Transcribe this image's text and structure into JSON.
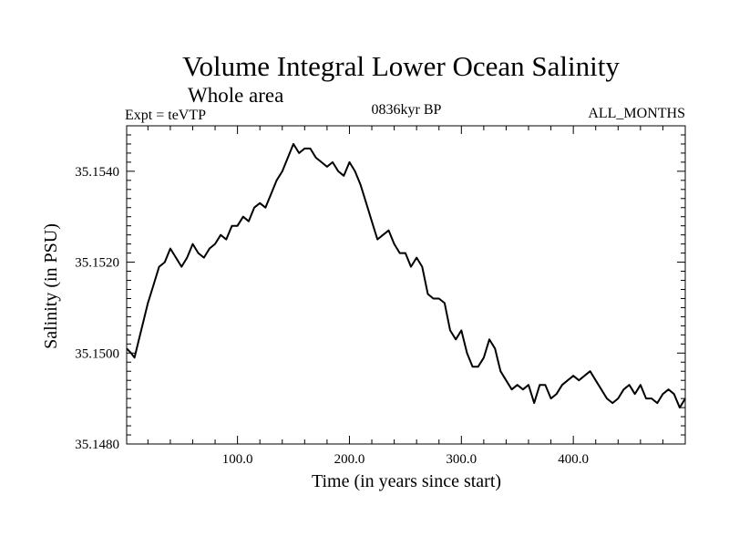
{
  "chart_data": {
    "type": "line",
    "title": "Volume Integral Lower Ocean Salinity",
    "subtitle": "Whole area",
    "expt_label": "Expt = teVTP",
    "period_label": "0836kyr BP",
    "months_label": "ALL_MONTHS",
    "xlabel": "Time (in years since start)",
    "ylabel": "Salinity (in PSU)",
    "xlim": [
      1,
      500
    ],
    "ylim": [
      35.148,
      35.155
    ],
    "xticks": [
      100,
      200,
      300,
      400
    ],
    "xtick_labels": [
      "100.0",
      "200.0",
      "300.0",
      "400.0"
    ],
    "yticks": [
      35.148,
      35.15,
      35.152,
      35.154
    ],
    "ytick_labels": [
      "35.1480",
      "35.1500",
      "35.1520",
      "35.1540"
    ],
    "series": [
      {
        "name": "salinity",
        "x": [
          1,
          5,
          8,
          12,
          16,
          20,
          25,
          30,
          35,
          40,
          45,
          50,
          55,
          60,
          65,
          70,
          75,
          80,
          85,
          90,
          95,
          100,
          105,
          110,
          115,
          120,
          125,
          130,
          135,
          140,
          145,
          150,
          155,
          160,
          165,
          170,
          175,
          180,
          185,
          190,
          195,
          200,
          205,
          210,
          215,
          220,
          225,
          230,
          235,
          240,
          245,
          250,
          255,
          260,
          265,
          270,
          275,
          280,
          285,
          290,
          295,
          300,
          305,
          310,
          315,
          320,
          325,
          330,
          335,
          340,
          345,
          350,
          355,
          360,
          365,
          370,
          375,
          380,
          385,
          390,
          395,
          400,
          405,
          410,
          415,
          420,
          425,
          430,
          435,
          440,
          445,
          450,
          455,
          460,
          465,
          470,
          475,
          480,
          485,
          490,
          495,
          500
        ],
        "values": [
          35.1501,
          35.15,
          35.1499,
          35.1503,
          35.1507,
          35.1511,
          35.1515,
          35.1519,
          35.152,
          35.1523,
          35.1521,
          35.1519,
          35.1521,
          35.1524,
          35.1522,
          35.1521,
          35.1523,
          35.1524,
          35.1526,
          35.1525,
          35.1528,
          35.1528,
          35.153,
          35.1529,
          35.1532,
          35.1533,
          35.1532,
          35.1535,
          35.1538,
          35.154,
          35.1543,
          35.1546,
          35.1544,
          35.1545,
          35.1545,
          35.1543,
          35.1542,
          35.1541,
          35.1542,
          35.154,
          35.1539,
          35.1542,
          35.154,
          35.1537,
          35.1533,
          35.1529,
          35.1525,
          35.1526,
          35.1527,
          35.1524,
          35.1522,
          35.1522,
          35.1519,
          35.1521,
          35.1519,
          35.1513,
          35.1512,
          35.1512,
          35.1511,
          35.1505,
          35.1503,
          35.1505,
          35.15,
          35.1497,
          35.1497,
          35.1499,
          35.1503,
          35.1501,
          35.1496,
          35.1494,
          35.1492,
          35.1493,
          35.1492,
          35.1493,
          35.1489,
          35.1493,
          35.1493,
          35.149,
          35.1491,
          35.1493,
          35.1494,
          35.1495,
          35.1494,
          35.1495,
          35.1496,
          35.1494,
          35.1492,
          35.149,
          35.1489,
          35.149,
          35.1492,
          35.1493,
          35.1491,
          35.1493,
          35.149,
          35.149,
          35.1489,
          35.1491,
          35.1492,
          35.1491,
          35.1488,
          35.149
        ]
      }
    ]
  }
}
